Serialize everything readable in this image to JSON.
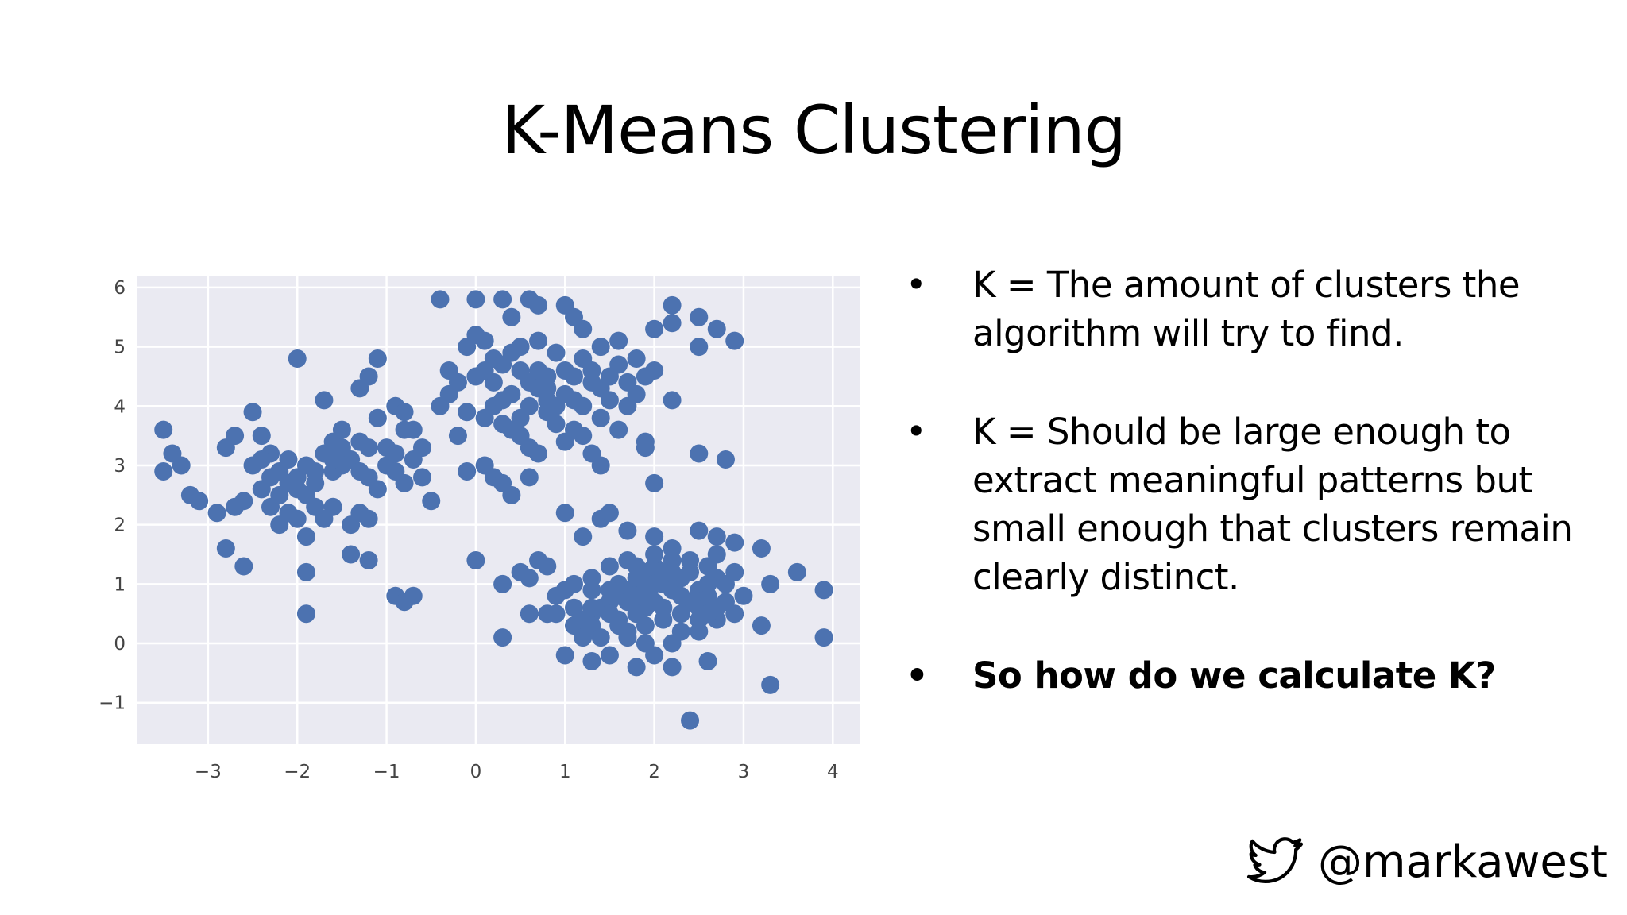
{
  "slide": {
    "title": "K-Means Clustering",
    "bullets": [
      "K = The amount of clusters the algorithm will try to find.",
      "K = Should be large enough to extract meaningful patterns but small enough that clusters remain clearly distinct.",
      "So how do we calculate K?"
    ],
    "footer": {
      "handle": "@markawest",
      "icon": "twitter-bird-icon"
    }
  },
  "chart_data": {
    "type": "scatter",
    "title": "",
    "xlabel": "",
    "ylabel": "",
    "xlim": [
      -3.8,
      4.3
    ],
    "ylim": [
      -1.7,
      6.2
    ],
    "xticks": [
      -3,
      -2,
      -1,
      0,
      1,
      2,
      3,
      4
    ],
    "yticks": [
      -1,
      0,
      1,
      2,
      3,
      4,
      5,
      6
    ],
    "grid": true,
    "background": "#eaeaf2",
    "grid_color": "#ffffff",
    "point_color": "#4c72b0",
    "series": [
      {
        "points": [
          [
            -3.5,
            3.6
          ],
          [
            -3.4,
            3.2
          ],
          [
            -3.3,
            3.0
          ],
          [
            -3.5,
            2.9
          ],
          [
            -3.2,
            2.5
          ],
          [
            -3.1,
            2.4
          ],
          [
            -2.9,
            2.2
          ],
          [
            -2.8,
            3.3
          ],
          [
            -2.7,
            3.5
          ],
          [
            -2.5,
            3.9
          ],
          [
            -2.4,
            3.5
          ],
          [
            -2.3,
            3.2
          ],
          [
            -2.2,
            2.9
          ],
          [
            -2.1,
            3.1
          ],
          [
            -2.0,
            2.8
          ],
          [
            -1.9,
            3.0
          ],
          [
            -1.8,
            2.7
          ],
          [
            -1.7,
            3.2
          ],
          [
            -1.6,
            3.4
          ],
          [
            -1.5,
            3.6
          ],
          [
            -1.4,
            3.1
          ],
          [
            -1.3,
            2.9
          ],
          [
            -1.2,
            3.3
          ],
          [
            -1.1,
            3.8
          ],
          [
            -1.0,
            3.0
          ],
          [
            -0.9,
            4.0
          ],
          [
            -0.8,
            3.9
          ],
          [
            -0.7,
            3.6
          ],
          [
            -0.6,
            3.3
          ],
          [
            -0.5,
            2.4
          ],
          [
            -2.6,
            2.4
          ],
          [
            -2.7,
            2.3
          ],
          [
            -2.3,
            2.3
          ],
          [
            -2.2,
            2.0
          ],
          [
            -2.0,
            2.1
          ],
          [
            -1.9,
            1.8
          ],
          [
            -1.7,
            2.1
          ],
          [
            -1.6,
            2.3
          ],
          [
            -1.4,
            2.0
          ],
          [
            -1.3,
            2.2
          ],
          [
            -1.2,
            2.1
          ],
          [
            -2.8,
            1.6
          ],
          [
            -2.6,
            1.3
          ],
          [
            -1.9,
            1.2
          ],
          [
            -1.9,
            0.5
          ],
          [
            -1.4,
            1.5
          ],
          [
            -1.2,
            1.4
          ],
          [
            -0.9,
            0.8
          ],
          [
            -0.8,
            0.7
          ],
          [
            -0.7,
            0.8
          ],
          [
            -2.0,
            4.8
          ],
          [
            -1.7,
            4.1
          ],
          [
            -1.3,
            4.3
          ],
          [
            -1.2,
            4.5
          ],
          [
            -1.1,
            4.8
          ],
          [
            -0.8,
            3.6
          ],
          [
            -2.4,
            2.6
          ],
          [
            -2.3,
            2.8
          ],
          [
            -2.1,
            2.7
          ],
          [
            -1.9,
            2.5
          ],
          [
            -1.8,
            2.3
          ],
          [
            -1.6,
            2.9
          ],
          [
            -1.5,
            3.3
          ],
          [
            -1.1,
            2.6
          ],
          [
            -0.9,
            2.9
          ],
          [
            -0.8,
            2.7
          ],
          [
            -0.6,
            2.8
          ],
          [
            -0.7,
            3.1
          ],
          [
            -2.5,
            3.0
          ],
          [
            -2.2,
            2.5
          ],
          [
            -1.8,
            2.9
          ],
          [
            -1.5,
            3.0
          ],
          [
            -1.3,
            3.4
          ],
          [
            -1.0,
            3.3
          ],
          [
            -2.0,
            2.6
          ],
          [
            -2.4,
            3.1
          ],
          [
            -2.1,
            2.2
          ],
          [
            -1.6,
            3.1
          ],
          [
            -0.9,
            3.2
          ],
          [
            -1.2,
            2.8
          ],
          [
            -0.4,
            5.8
          ],
          [
            0.0,
            5.8
          ],
          [
            0.3,
            5.8
          ],
          [
            0.4,
            5.5
          ],
          [
            0.6,
            5.8
          ],
          [
            0.7,
            5.7
          ],
          [
            1.0,
            5.7
          ],
          [
            1.1,
            5.5
          ],
          [
            1.2,
            5.3
          ],
          [
            -0.1,
            5.0
          ],
          [
            0.1,
            5.1
          ],
          [
            0.2,
            4.8
          ],
          [
            0.3,
            4.7
          ],
          [
            0.4,
            4.9
          ],
          [
            0.5,
            4.6
          ],
          [
            0.6,
            4.4
          ],
          [
            0.7,
            4.3
          ],
          [
            0.8,
            4.1
          ],
          [
            0.9,
            4.0
          ],
          [
            1.0,
            4.6
          ],
          [
            1.1,
            4.5
          ],
          [
            1.2,
            4.8
          ],
          [
            1.3,
            4.6
          ],
          [
            1.4,
            4.3
          ],
          [
            1.5,
            4.5
          ],
          [
            1.6,
            4.7
          ],
          [
            1.7,
            4.4
          ],
          [
            1.8,
            4.2
          ],
          [
            1.9,
            4.5
          ],
          [
            2.0,
            4.6
          ],
          [
            2.2,
            4.1
          ],
          [
            -0.3,
            4.6
          ],
          [
            -0.2,
            4.4
          ],
          [
            -0.3,
            4.2
          ],
          [
            -0.1,
            3.9
          ],
          [
            0.1,
            3.8
          ],
          [
            0.2,
            4.0
          ],
          [
            0.3,
            3.7
          ],
          [
            0.4,
            3.6
          ],
          [
            0.5,
            3.5
          ],
          [
            0.6,
            3.3
          ],
          [
            0.7,
            3.2
          ],
          [
            0.8,
            3.9
          ],
          [
            1.0,
            3.4
          ],
          [
            1.1,
            3.6
          ],
          [
            1.2,
            3.5
          ],
          [
            1.3,
            3.2
          ],
          [
            1.4,
            3.0
          ],
          [
            1.6,
            3.6
          ],
          [
            1.9,
            3.4
          ],
          [
            1.9,
            3.3
          ],
          [
            2.5,
            3.2
          ],
          [
            2.8,
            3.1
          ],
          [
            0.1,
            3.0
          ],
          [
            0.2,
            2.8
          ],
          [
            0.3,
            2.7
          ],
          [
            0.4,
            2.5
          ],
          [
            0.6,
            2.8
          ],
          [
            -0.1,
            2.9
          ],
          [
            2.0,
            2.7
          ],
          [
            2.2,
            5.7
          ],
          [
            2.2,
            5.4
          ],
          [
            2.5,
            5.5
          ],
          [
            2.7,
            5.3
          ],
          [
            2.9,
            5.1
          ],
          [
            2.5,
            5.0
          ],
          [
            2.0,
            5.3
          ],
          [
            1.8,
            4.8
          ],
          [
            0.0,
            5.2
          ],
          [
            0.5,
            5.0
          ],
          [
            0.7,
            5.1
          ],
          [
            0.9,
            4.9
          ],
          [
            1.4,
            5.0
          ],
          [
            1.6,
            5.1
          ],
          [
            0.2,
            4.4
          ],
          [
            0.4,
            4.2
          ],
          [
            0.6,
            4.0
          ],
          [
            0.8,
            4.3
          ],
          [
            1.0,
            4.2
          ],
          [
            1.2,
            4.0
          ],
          [
            1.4,
            3.8
          ],
          [
            -0.4,
            4.0
          ],
          [
            0.0,
            4.5
          ],
          [
            0.5,
            3.8
          ],
          [
            0.9,
            3.7
          ],
          [
            1.1,
            4.1
          ],
          [
            1.3,
            4.4
          ],
          [
            1.7,
            4.0
          ],
          [
            -0.2,
            3.5
          ],
          [
            0.3,
            4.1
          ],
          [
            0.7,
            4.6
          ],
          [
            1.5,
            4.1
          ],
          [
            0.1,
            4.6
          ],
          [
            0.8,
            4.5
          ],
          [
            1.0,
            2.2
          ],
          [
            1.2,
            1.8
          ],
          [
            1.4,
            2.1
          ],
          [
            1.5,
            2.2
          ],
          [
            1.7,
            1.9
          ],
          [
            2.0,
            1.8
          ],
          [
            2.2,
            1.6
          ],
          [
            2.5,
            1.9
          ],
          [
            2.7,
            1.8
          ],
          [
            2.9,
            1.7
          ],
          [
            3.2,
            1.6
          ],
          [
            3.3,
            1.0
          ],
          [
            3.6,
            1.2
          ],
          [
            3.9,
            0.9
          ],
          [
            3.9,
            0.1
          ],
          [
            3.2,
            0.3
          ],
          [
            2.9,
            0.5
          ],
          [
            2.7,
            0.4
          ],
          [
            2.5,
            0.6
          ],
          [
            2.3,
            0.8
          ],
          [
            2.1,
            1.0
          ],
          [
            1.9,
            1.2
          ],
          [
            1.7,
            1.4
          ],
          [
            1.5,
            1.3
          ],
          [
            1.3,
            0.9
          ],
          [
            1.1,
            0.6
          ],
          [
            0.9,
            0.5
          ],
          [
            0.7,
            1.4
          ],
          [
            0.5,
            1.2
          ],
          [
            0.3,
            1.0
          ],
          [
            0.0,
            1.4
          ],
          [
            0.6,
            0.5
          ],
          [
            0.3,
            0.1
          ],
          [
            1.0,
            -0.2
          ],
          [
            1.3,
            -0.3
          ],
          [
            1.5,
            -0.2
          ],
          [
            1.7,
            0.1
          ],
          [
            1.8,
            -0.4
          ],
          [
            2.0,
            -0.2
          ],
          [
            2.2,
            -0.4
          ],
          [
            2.4,
            -1.3
          ],
          [
            2.6,
            -0.3
          ],
          [
            3.3,
            -0.7
          ],
          [
            1.1,
            0.3
          ],
          [
            1.3,
            0.5
          ],
          [
            1.5,
            0.7
          ],
          [
            1.7,
            0.9
          ],
          [
            1.9,
            0.6
          ],
          [
            2.1,
            0.4
          ],
          [
            2.3,
            0.2
          ],
          [
            2.5,
            0.9
          ],
          [
            2.7,
            1.1
          ],
          [
            2.8,
            0.7
          ],
          [
            2.6,
            1.3
          ],
          [
            2.4,
            1.2
          ],
          [
            2.2,
            1.4
          ],
          [
            2.0,
            1.3
          ],
          [
            1.8,
            1.1
          ],
          [
            1.6,
            0.8
          ],
          [
            1.4,
            0.6
          ],
          [
            1.2,
            0.4
          ],
          [
            1.6,
            0.3
          ],
          [
            1.8,
            0.5
          ],
          [
            2.0,
            0.7
          ],
          [
            2.2,
            0.9
          ],
          [
            2.4,
            0.7
          ],
          [
            2.6,
            0.5
          ],
          [
            2.8,
            1.0
          ],
          [
            2.5,
            0.4
          ],
          [
            2.3,
            1.1
          ],
          [
            2.1,
            1.2
          ],
          [
            1.9,
            0.9
          ],
          [
            1.7,
            0.7
          ],
          [
            1.5,
            0.5
          ],
          [
            1.3,
            0.3
          ],
          [
            1.6,
            1.0
          ],
          [
            1.8,
            0.8
          ],
          [
            2.0,
            1.0
          ],
          [
            2.2,
            1.2
          ],
          [
            2.4,
            1.4
          ],
          [
            2.6,
            0.8
          ],
          [
            2.7,
            0.6
          ],
          [
            2.3,
            0.5
          ],
          [
            2.1,
            0.6
          ],
          [
            1.9,
            0.3
          ],
          [
            1.7,
            0.2
          ],
          [
            1.4,
            0.1
          ],
          [
            1.2,
            0.1
          ],
          [
            0.8,
            0.5
          ],
          [
            0.6,
            1.1
          ],
          [
            0.8,
            1.3
          ],
          [
            1.0,
            0.9
          ],
          [
            1.3,
            0.6
          ],
          [
            1.6,
            0.4
          ],
          [
            1.9,
            0.0
          ],
          [
            2.2,
            0.0
          ],
          [
            2.5,
            0.2
          ],
          [
            2.6,
            1.0
          ],
          [
            2.0,
            1.5
          ],
          [
            1.8,
            1.3
          ],
          [
            1.5,
            0.9
          ],
          [
            1.3,
            1.1
          ],
          [
            1.1,
            1.0
          ],
          [
            0.9,
            0.8
          ],
          [
            2.9,
            1.2
          ],
          [
            3.0,
            0.8
          ],
          [
            2.7,
            1.5
          ]
        ]
      }
    ]
  }
}
